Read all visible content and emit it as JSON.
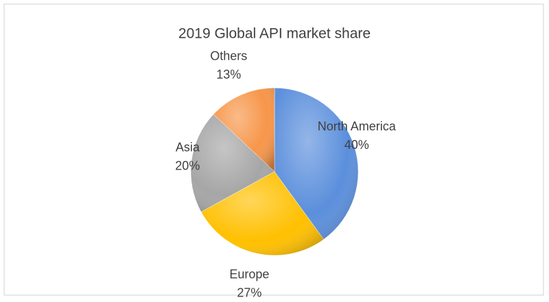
{
  "chart_data": {
    "type": "pie",
    "title": "2019 Global API market share",
    "categories": [
      "North America",
      "Europe",
      "Asia",
      "Others"
    ],
    "values": [
      40,
      27,
      20,
      13
    ],
    "value_labels": [
      "40%",
      "27%",
      "20%",
      "13%"
    ],
    "colors": [
      "#5b8fdc",
      "#ffc000",
      "#a6a6a6",
      "#f7964a"
    ]
  }
}
